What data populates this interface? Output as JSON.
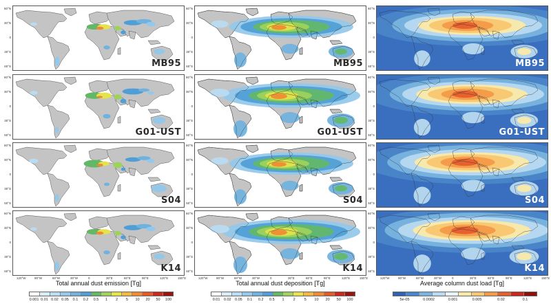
{
  "columns": [
    {
      "id": "emission",
      "title": "Total annual dust emission [Tg]",
      "colorbar_ticks": [
        "0.001",
        "0.01",
        "0.02",
        "0.05",
        "0.1",
        "0.2",
        "0.5",
        "1",
        "2",
        "5",
        "10",
        "20",
        "50",
        "100"
      ],
      "colorbar_colors": [
        "#ffffff",
        "#d8ecf8",
        "#b9dcf2",
        "#93c8ea",
        "#6fb2e0",
        "#4f9ed6",
        "#63b866",
        "#9fd25b",
        "#e5e24b",
        "#f6b63f",
        "#f08a30",
        "#e35a25",
        "#c92a1c",
        "#99130f"
      ]
    },
    {
      "id": "deposition",
      "title": "Total annual dust deposition [Tg]",
      "colorbar_ticks": [
        "0.01",
        "0.02",
        "0.05",
        "0.1",
        "0.2",
        "0.5",
        "1",
        "2",
        "5",
        "10",
        "20",
        "50",
        "100"
      ],
      "colorbar_colors": [
        "#ffffff",
        "#d8ecf8",
        "#b9dcf2",
        "#93c8ea",
        "#6fb2e0",
        "#4f9ed6",
        "#63b866",
        "#9fd25b",
        "#e5e24b",
        "#f6b63f",
        "#f08a30",
        "#e35a25",
        "#c92a1c",
        "#99130f"
      ]
    },
    {
      "id": "column_load",
      "title": "Average column dust load [Tg]",
      "colorbar_ticks": [
        "5e-05",
        "0.0002",
        "0.001",
        "0.005",
        "0.02",
        "0.1"
      ],
      "colorbar_colors": [
        "#2f62b3",
        "#4a85c9",
        "#7ab3df",
        "#b8d9ef",
        "#e8f2f8",
        "#fbe9a8",
        "#f9c66f",
        "#f39a48",
        "#e55e2c",
        "#c8281d",
        "#8f0f0d"
      ]
    }
  ],
  "rows": [
    {
      "scheme": "MB95"
    },
    {
      "scheme": "G01-UST"
    },
    {
      "scheme": "S04"
    },
    {
      "scheme": "K14"
    }
  ],
  "lat_labels": [
    "60°N",
    "30°N",
    "0",
    "30°S",
    "60°S"
  ],
  "lon_labels": [
    "120°W",
    "90°W",
    "60°W",
    "30°W",
    "0",
    "30°E",
    "60°E",
    "90°E",
    "120°E",
    "150°E"
  ],
  "colors": {
    "land": "#c4c4c4",
    "ocean_emission": "#ffffff",
    "ocean_load": "#3a6fbf",
    "coast": "#333333"
  }
}
